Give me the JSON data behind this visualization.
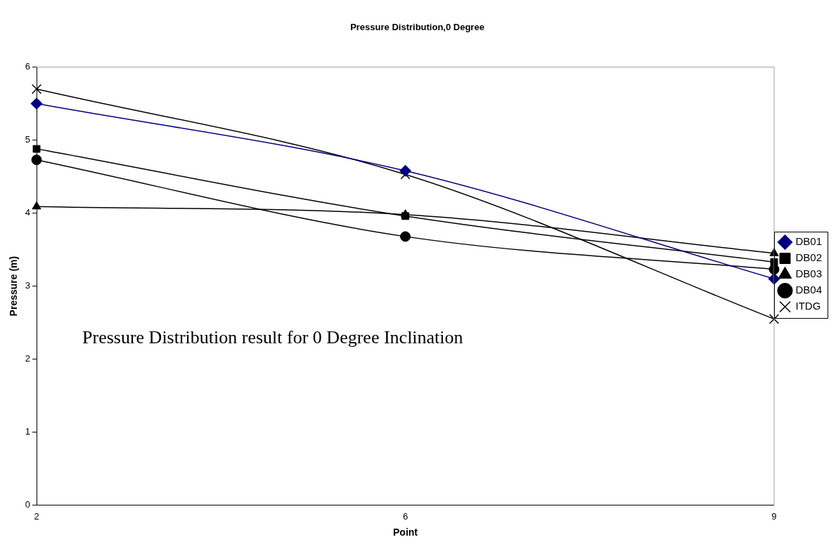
{
  "chart_data": {
    "type": "line",
    "title": "Pressure Distribution,0 Degree",
    "xlabel": "Point",
    "ylabel": "Pressure (m)",
    "categories": [
      "2",
      "6",
      "9"
    ],
    "series": [
      {
        "name": "DB01",
        "color": "#000080",
        "marker": "diamond",
        "values": [
          5.5,
          4.58,
          3.1
        ]
      },
      {
        "name": "DB02",
        "color": "#000000",
        "marker": "square",
        "values": [
          4.88,
          3.96,
          3.33
        ]
      },
      {
        "name": "DB03",
        "color": "#000000",
        "marker": "triangle",
        "values": [
          4.09,
          3.98,
          3.45
        ]
      },
      {
        "name": "DB04",
        "color": "#000000",
        "marker": "circle",
        "values": [
          4.73,
          3.68,
          3.23
        ]
      },
      {
        "name": "ITDG",
        "color": "#000000",
        "marker": "cross",
        "values": [
          5.7,
          4.53,
          2.55
        ]
      }
    ],
    "ylim": [
      0,
      6
    ],
    "yticks": [
      0,
      1,
      2,
      3,
      4,
      5,
      6
    ],
    "grid": false,
    "legend": "right",
    "line_style": "solid",
    "annotations": [
      "Pressure Distribution result for 0 Degree Inclination"
    ]
  }
}
